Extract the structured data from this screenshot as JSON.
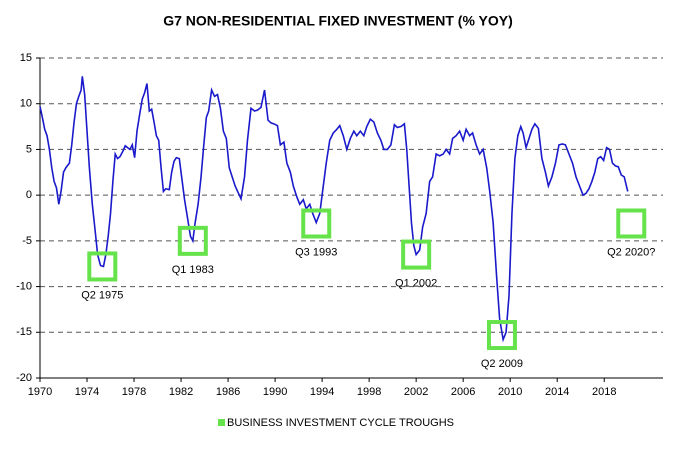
{
  "chart_data": {
    "type": "line",
    "title": "G7 NON-RESIDENTIAL FIXED INVESTMENT (% YOY)",
    "xlim": [
      1970,
      2023
    ],
    "xticks": [
      1970,
      1974,
      1978,
      1982,
      1986,
      1990,
      1994,
      1998,
      2002,
      2006,
      2010,
      2014,
      2018
    ],
    "ylim": [
      -20,
      15
    ],
    "yticks": [
      -20,
      -15,
      -10,
      -5,
      0,
      5,
      10,
      15
    ],
    "grid": true,
    "legend": "bottom",
    "series": [
      {
        "type": "line",
        "color": "#1a1acc",
        "x": [
          1970.0,
          1970.2,
          1970.4,
          1970.6,
          1970.8,
          1971.0,
          1971.2,
          1971.4,
          1971.6,
          1971.8,
          1972.0,
          1972.2,
          1972.5,
          1972.7,
          1972.9,
          1973.1,
          1973.3,
          1973.5,
          1973.6,
          1973.8,
          1973.95,
          1974.2,
          1974.45,
          1974.7,
          1974.9,
          1975.15,
          1975.4,
          1975.6,
          1975.8,
          1976.0,
          1976.2,
          1976.4,
          1976.6,
          1976.8,
          1977.05,
          1977.25,
          1977.45,
          1977.65,
          1977.85,
          1978.05,
          1978.25,
          1978.5,
          1978.7,
          1978.9,
          1979.1,
          1979.3,
          1979.5,
          1979.7,
          1979.9,
          1980.1,
          1980.3,
          1980.5,
          1980.7,
          1981.0,
          1981.2,
          1981.4,
          1981.6,
          1981.85,
          1982.05,
          1982.3,
          1982.55,
          1982.8,
          1983.0,
          1983.2,
          1983.45,
          1983.7,
          1983.9,
          1984.15,
          1984.35,
          1984.6,
          1984.85,
          1985.1,
          1985.35,
          1985.6,
          1985.85,
          1986.1,
          1986.35,
          1986.6,
          1986.85,
          1987.1,
          1987.4,
          1987.65,
          1987.95,
          1988.25,
          1988.5,
          1988.8,
          1989.1,
          1989.4,
          1989.65,
          1989.9,
          1990.2,
          1990.45,
          1990.75,
          1991.0,
          1991.3,
          1991.55,
          1991.85,
          1992.1,
          1992.4,
          1992.65,
          1992.95,
          1993.2,
          1993.5,
          1993.8,
          1994.1,
          1994.35,
          1994.65,
          1994.95,
          1995.25,
          1995.5,
          1995.8,
          1996.1,
          1996.4,
          1996.7,
          1996.95,
          1997.25,
          1997.55,
          1997.8,
          1998.1,
          1998.4,
          1998.7,
          1999.0,
          1999.25,
          1999.55,
          1999.85,
          2000.15,
          2000.4,
          2000.7,
          2001.0,
          2001.2,
          2001.4,
          2001.6,
          2001.8,
          2002.0,
          2002.3,
          2002.55,
          2002.85,
          2003.15,
          2003.4,
          2003.7,
          2004.0,
          2004.3,
          2004.55,
          2004.85,
          2005.1,
          2005.4,
          2005.7,
          2006.0,
          2006.25,
          2006.55,
          2006.8,
          2007.1,
          2007.4,
          2007.7,
          2008.0,
          2008.25,
          2008.55,
          2008.85,
          2009.1,
          2009.4,
          2009.65,
          2009.9,
          2010.15,
          2010.4,
          2010.65,
          2010.9,
          2011.1,
          2011.35,
          2011.6,
          2011.85,
          2012.1,
          2012.4,
          2012.7,
          2013.0,
          2013.25,
          2013.55,
          2013.85,
          2014.15,
          2014.45,
          2014.7,
          2015.0,
          2015.3,
          2015.6,
          2015.9,
          2016.2,
          2016.45,
          2016.7,
          2016.95,
          2017.2,
          2017.45,
          2017.7,
          2017.95,
          2018.2,
          2018.45,
          2018.7,
          2018.95,
          2019.2,
          2019.45,
          2019.7,
          2020.0
        ],
        "values": [
          9.7,
          8.5,
          7.2,
          6.5,
          5.0,
          3.0,
          1.5,
          0.8,
          -1.0,
          0.5,
          2.5,
          3.0,
          3.5,
          5.5,
          8.0,
          10.0,
          10.8,
          11.5,
          13.0,
          11.0,
          8.0,
          3.0,
          -1.0,
          -4.0,
          -6.5,
          -7.7,
          -7.8,
          -6.5,
          -4.5,
          -2.0,
          1.5,
          4.5,
          4.0,
          4.2,
          4.8,
          5.4,
          5.2,
          5.0,
          5.5,
          4.1,
          7.0,
          9.0,
          10.5,
          11.2,
          12.2,
          9.2,
          9.4,
          8.0,
          6.5,
          6.0,
          3.0,
          0.4,
          0.7,
          0.6,
          2.5,
          3.7,
          4.1,
          4.0,
          2.0,
          -0.5,
          -2.5,
          -4.5,
          -5.0,
          -3.0,
          -1.0,
          2.0,
          5.0,
          8.5,
          9.2,
          11.5,
          10.8,
          11.0,
          9.5,
          7.0,
          6.2,
          3.0,
          2.0,
          1.0,
          0.3,
          -0.4,
          2.0,
          6.0,
          9.5,
          9.2,
          9.3,
          9.6,
          11.5,
          8.2,
          7.9,
          7.8,
          7.6,
          5.5,
          5.8,
          3.5,
          2.5,
          1.0,
          -0.2,
          -1.0,
          -0.5,
          -1.5,
          -1.0,
          -2.0,
          -3.0,
          -2.0,
          1.0,
          3.5,
          6.0,
          6.8,
          7.2,
          7.6,
          6.5,
          5.0,
          6.2,
          7.0,
          6.5,
          7.0,
          6.5,
          7.5,
          8.3,
          8.0,
          6.8,
          6.0,
          5.0,
          5.0,
          5.5,
          7.7,
          7.4,
          7.5,
          7.8,
          5.0,
          1.0,
          -3.0,
          -5.5,
          -6.5,
          -6.0,
          -3.5,
          -2.0,
          1.5,
          2.0,
          4.5,
          4.3,
          4.5,
          5.0,
          4.5,
          6.2,
          6.5,
          7.0,
          6.0,
          7.2,
          6.5,
          6.8,
          5.5,
          4.5,
          5.0,
          3.0,
          0.5,
          -3.0,
          -9.0,
          -13.5,
          -15.8,
          -15.0,
          -11.0,
          -2.0,
          4.0,
          6.5,
          7.5,
          6.8,
          5.2,
          6.2,
          7.2,
          7.8,
          7.3,
          4.0,
          2.5,
          1.0,
          2.0,
          3.5,
          5.5,
          5.6,
          5.5,
          4.5,
          3.5,
          2.0,
          1.0,
          0.0,
          0.2,
          0.7,
          1.5,
          2.5,
          4.0,
          4.2,
          3.8,
          5.2,
          5.0,
          3.5,
          3.2,
          3.1,
          2.2,
          2.0,
          0.4
        ]
      },
      {
        "type": "marker",
        "name": "BUSINESS INVESTMENT CYCLE TROUGHS",
        "color": "#66e34a",
        "x": [
          1975.3,
          1983.0,
          1993.5,
          2002.0,
          2009.3,
          2020.3
        ],
        "values": [
          -7.8,
          -5.0,
          -3.1,
          -6.5,
          -15.3,
          -3.1
        ],
        "labels": [
          "Q2 1975",
          "Q1 1983",
          "Q3 1993",
          "Q1 2002",
          "Q2 2009",
          "Q2 2020?"
        ]
      }
    ]
  }
}
